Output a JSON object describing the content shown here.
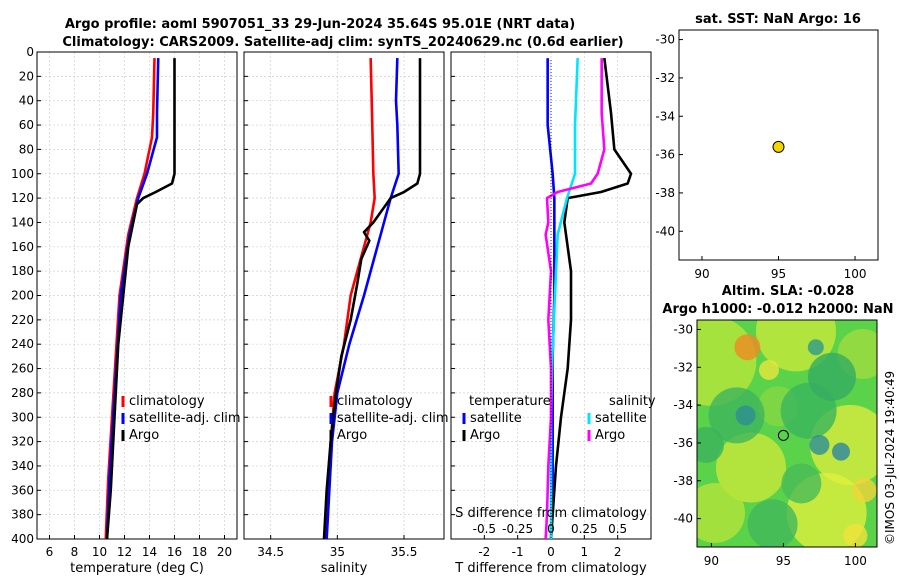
{
  "title_line1": "Argo profile: aoml 5907051_33 29-Jun-2024 35.64S 95.01E (NRT data)",
  "title_line2": "Climatology: CARS2009. Satellite-adj clim: synTS_20240629.nc (0.6d earlier)",
  "sst_title": "sat. SST: NaN Argo: 16",
  "altim_title": "Altim. SLA: -0.028",
  "h_title": "Argo h1000: -0.012 h2000: NaN",
  "copyright": "©IMOS 03-Jul-2024 19:40:49",
  "colors": {
    "climatology": "#ff0000",
    "satellite": "#0000ff",
    "argo": "#000000",
    "sal_satellite": "#00e5ff",
    "sal_argo": "#ff00ff",
    "marker": "#f2d600"
  },
  "chart_data": [
    {
      "type": "line",
      "name": "temperature-panel",
      "xlabel": "temperature (deg C)",
      "xlim": [
        5,
        21
      ],
      "ylim": [
        0,
        400
      ],
      "xticks": [
        "6",
        "8",
        "10",
        "12",
        "14",
        "16",
        "18",
        "20"
      ],
      "yticks": [
        "0",
        "20",
        "40",
        "60",
        "80",
        "100",
        "120",
        "140",
        "160",
        "180",
        "200",
        "220",
        "240",
        "260",
        "280",
        "300",
        "320",
        "340",
        "360",
        "380",
        "400"
      ],
      "legend": [
        "climatology",
        "satellite-adj. clim",
        "Argo"
      ],
      "series": [
        {
          "name": "climatology",
          "depth": [
            5,
            50,
            70,
            100,
            120,
            150,
            200,
            250,
            300,
            350,
            400
          ],
          "values": [
            14.4,
            14.3,
            14.2,
            13.6,
            13.0,
            12.3,
            11.6,
            11.3,
            11.0,
            10.7,
            10.5
          ]
        },
        {
          "name": "satellite-adj. clim",
          "depth": [
            5,
            50,
            70,
            100,
            120,
            150,
            200,
            250,
            300,
            350,
            400
          ],
          "values": [
            14.7,
            14.6,
            14.6,
            13.8,
            13.1,
            12.4,
            11.7,
            11.4,
            11.1,
            10.8,
            10.6
          ]
        },
        {
          "name": "Argo",
          "depth": [
            5,
            50,
            100,
            108,
            115,
            120,
            125,
            140,
            160,
            200,
            220,
            240,
            280,
            320,
            360,
            400
          ],
          "values": [
            16.0,
            16.0,
            16.0,
            15.8,
            14.5,
            13.5,
            13.0,
            12.7,
            12.3,
            11.9,
            11.7,
            11.5,
            11.3,
            11.1,
            10.9,
            10.6
          ]
        }
      ]
    },
    {
      "type": "line",
      "name": "salinity-panel",
      "xlabel": "salinity",
      "xlim": [
        34.3,
        35.8
      ],
      "ylim": [
        0,
        400
      ],
      "xticks": [
        "34.5",
        "35",
        "35.5"
      ],
      "legend": [
        "climatology",
        "satellite-adj. clim",
        "Argo"
      ],
      "series": [
        {
          "name": "climatology",
          "depth": [
            5,
            50,
            100,
            120,
            140,
            160,
            180,
            200,
            240,
            280,
            320,
            360,
            400
          ],
          "values": [
            35.25,
            35.26,
            35.27,
            35.28,
            35.25,
            35.2,
            35.15,
            35.1,
            35.05,
            34.98,
            34.95,
            34.93,
            34.91
          ]
        },
        {
          "name": "satellite-adj. clim",
          "depth": [
            5,
            40,
            60,
            100,
            120,
            140,
            160,
            200,
            240,
            280,
            320,
            360,
            400
          ],
          "values": [
            35.45,
            35.44,
            35.45,
            35.46,
            35.4,
            35.35,
            35.3,
            35.2,
            35.09,
            35.0,
            34.96,
            34.94,
            34.92
          ]
        },
        {
          "name": "Argo",
          "depth": [
            5,
            60,
            100,
            108,
            115,
            120,
            140,
            148,
            155,
            170,
            190,
            220,
            250,
            280,
            320,
            360,
            400
          ],
          "values": [
            35.62,
            35.62,
            35.62,
            35.6,
            35.5,
            35.4,
            35.27,
            35.2,
            35.24,
            35.18,
            35.15,
            35.1,
            35.03,
            34.99,
            34.95,
            34.92,
            34.9
          ]
        }
      ]
    },
    {
      "type": "line",
      "name": "difference-panel",
      "xlabel": "T difference from climatology",
      "s_xlabel": "S difference from climatology",
      "xlim": [
        -3,
        3
      ],
      "ylim": [
        0,
        400
      ],
      "xticks": [
        "-2",
        "-1",
        "0",
        "1",
        "2"
      ],
      "s_xticks": [
        "-0.5",
        "-0.25",
        "0",
        "0.25",
        "0.5"
      ],
      "legend_temperature": {
        "title": "temperature",
        "items": [
          "satellite",
          "Argo"
        ]
      },
      "legend_salinity": {
        "title": "salinity",
        "items": [
          "satellite",
          "Argo"
        ]
      },
      "series": [
        {
          "name": "temperature satellite",
          "depth": [
            5,
            40,
            60,
            100,
            120,
            150,
            200,
            250,
            300,
            350,
            400
          ],
          "values": [
            -0.1,
            -0.1,
            -0.1,
            0.05,
            0.1,
            0.1,
            0.1,
            0.05,
            0.05,
            0.05,
            0.0
          ]
        },
        {
          "name": "temperature Argo",
          "depth": [
            5,
            50,
            80,
            100,
            108,
            115,
            120,
            140,
            180,
            220,
            260,
            300,
            340,
            380,
            400
          ],
          "values": [
            1.6,
            1.8,
            1.9,
            2.4,
            2.3,
            1.5,
            0.5,
            0.4,
            0.6,
            0.6,
            0.5,
            0.3,
            0.15,
            0.05,
            0.0
          ]
        },
        {
          "name": "salinity satellite",
          "depth": [
            5,
            60,
            100,
            120,
            150,
            200,
            250,
            300,
            350,
            400
          ],
          "values": [
            0.2,
            0.18,
            0.18,
            0.12,
            0.05,
            0.03,
            0.01,
            0.0,
            0.0,
            0.0
          ]
        },
        {
          "name": "salinity Argo",
          "depth": [
            5,
            50,
            80,
            100,
            108,
            115,
            120,
            140,
            150,
            180,
            220,
            260,
            300,
            340,
            380,
            400
          ],
          "values": [
            0.38,
            0.38,
            0.4,
            0.35,
            0.3,
            0.05,
            -0.03,
            -0.02,
            -0.04,
            0.0,
            -0.02,
            0.0,
            0.0,
            -0.02,
            -0.03,
            -0.04
          ]
        }
      ]
    },
    {
      "type": "scatter",
      "name": "sst-map",
      "xlim": [
        88.5,
        101.5
      ],
      "ylim": [
        -41.5,
        -29.5
      ],
      "xticks": [
        "90",
        "95",
        "100"
      ],
      "yticks": [
        "-30",
        "-32",
        "-34",
        "-36",
        "-38",
        "-40"
      ],
      "points": [
        {
          "x": 95.0,
          "y": -35.6
        }
      ]
    },
    {
      "type": "heatmap",
      "name": "sla-map",
      "xlim": [
        89,
        101.5
      ],
      "ylim": [
        -41.5,
        -29.5
      ],
      "xticks": [
        "90",
        "95",
        "100"
      ],
      "yticks": [
        "-30",
        "-32",
        "-34",
        "-36",
        "-38",
        "-40"
      ],
      "points": [
        {
          "x": 95.0,
          "y": -35.6
        }
      ]
    }
  ]
}
